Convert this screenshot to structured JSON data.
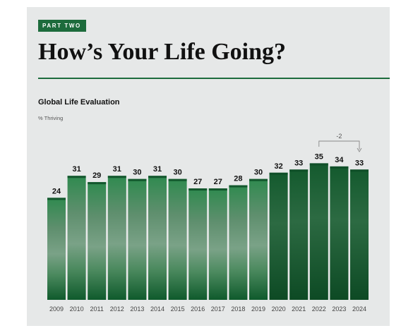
{
  "header": {
    "badge": "PART TWO",
    "title": "How’s Your Life Going?"
  },
  "colors": {
    "brand_green": "#1d6b3c",
    "background": "#e6e8e8"
  },
  "chart_data": {
    "type": "bar",
    "title": "Global Life Evaluation",
    "ylabel": "% Thriving",
    "xlabel": "",
    "categories": [
      "2009",
      "2010",
      "2011",
      "2012",
      "2013",
      "2014",
      "2015",
      "2016",
      "2017",
      "2018",
      "2019",
      "2020",
      "2021",
      "2022",
      "2023",
      "2024"
    ],
    "values": [
      24,
      31,
      29,
      31,
      30,
      31,
      30,
      27,
      27,
      28,
      30,
      32,
      33,
      35,
      34,
      33
    ],
    "ylim": [
      0,
      35
    ],
    "grid": false,
    "annotation": {
      "text": "-2",
      "from": "2022",
      "to": "2024"
    }
  }
}
